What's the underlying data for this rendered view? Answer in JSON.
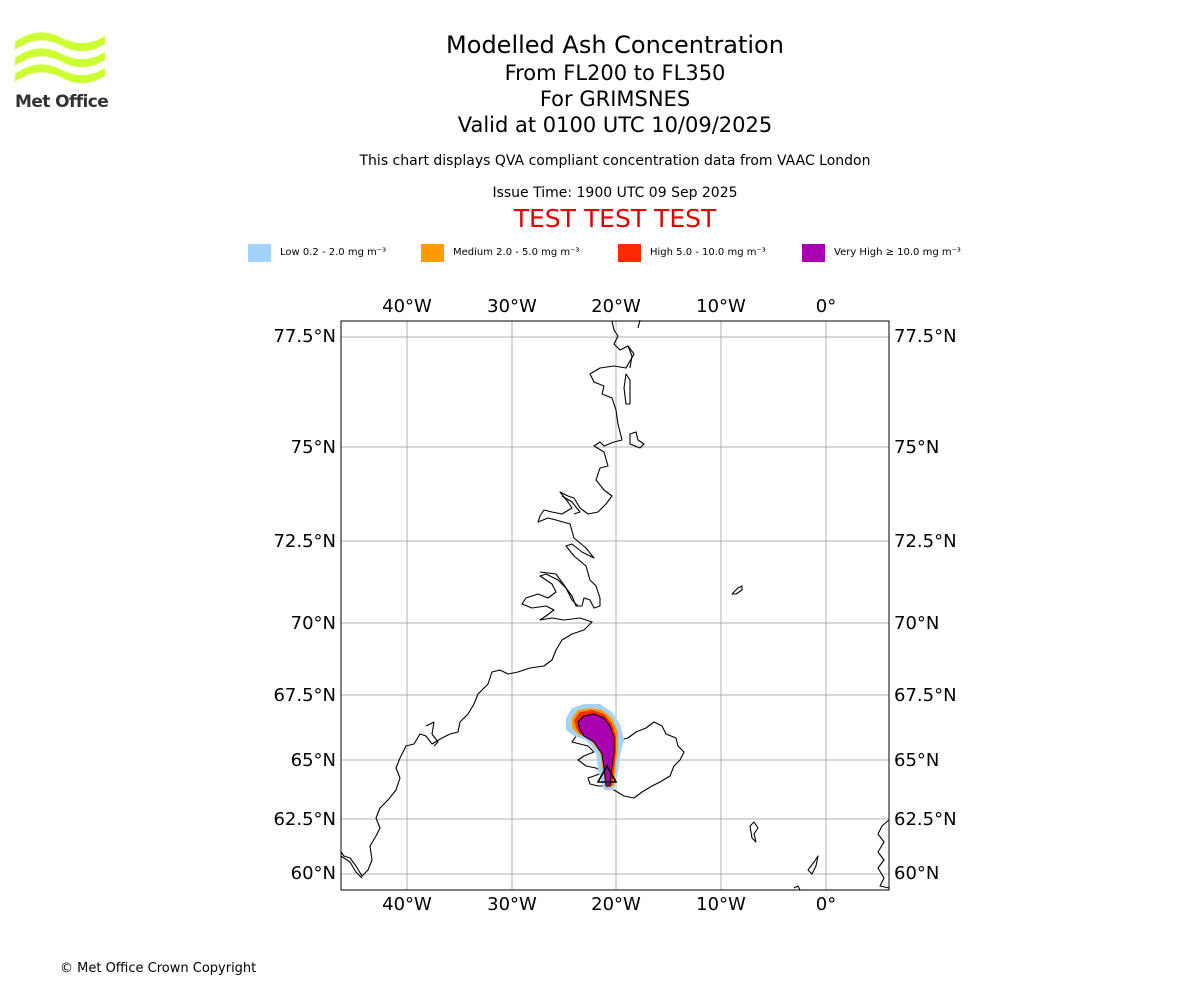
{
  "branding": {
    "logo_text": "Met Office",
    "logo_color": "#ccff33"
  },
  "header": {
    "title": "Modelled Ash Concentration",
    "levels": "From FL200 to FL350",
    "volcano": "For GRIMSNES",
    "valid": "Valid at 0100 UTC 10/09/2025",
    "description": "This chart displays QVA compliant concentration data from VAAC London",
    "issue_time": "Issue Time: 1900 UTC 09 Sep 2025",
    "test_banner": "TEST TEST TEST",
    "test_color": "#e00000"
  },
  "legend": [
    {
      "label": "Low 0.2 - 2.0 mg m⁻³",
      "color": "#a3d3fa"
    },
    {
      "label": "Medium 2.0 - 5.0 mg m⁻³",
      "color": "#ff9a00"
    },
    {
      "label": "High 5.0 - 10.0 mg m⁻³",
      "color": "#ff2a00"
    },
    {
      "label": "Very High ≥ 10.0 mg m⁻³",
      "color": "#a800b0"
    }
  ],
  "map": {
    "lon_labels": [
      "40°W",
      "30°W",
      "20°W",
      "10°W",
      "0°"
    ],
    "lat_labels": [
      "77.5°N",
      "75°N",
      "72.5°N",
      "70°N",
      "67.5°N",
      "65°N",
      "62.5°N",
      "60°N"
    ],
    "lon_values": [
      -40,
      -30,
      -20,
      -10,
      0
    ],
    "lat_values": [
      77.5,
      75,
      72.5,
      70,
      67.5,
      65,
      62.5,
      60
    ],
    "grid_color": "#b0b0b0",
    "volcano_name": "GRIMSNES"
  },
  "footer": {
    "copyright": "© Met Office Crown Copyright"
  }
}
